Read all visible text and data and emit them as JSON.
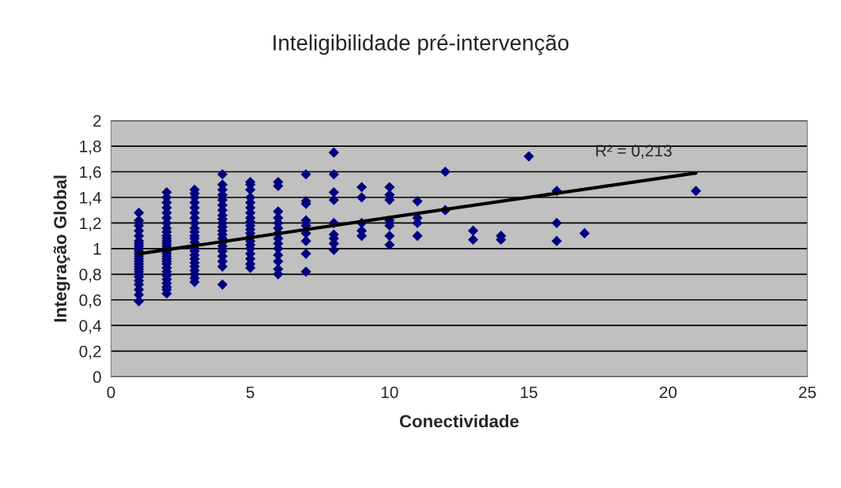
{
  "chart_data": {
    "type": "scatter",
    "title": "Inteligibilidade pré-intervenção",
    "xlabel": "Conectividade",
    "ylabel": "Integração Global",
    "xlim": [
      0,
      25
    ],
    "xticks": [
      0,
      5,
      10,
      15,
      20,
      25
    ],
    "ylim": [
      0,
      2
    ],
    "yticks": [
      {
        "value": 0,
        "label": "0"
      },
      {
        "value": 0.2,
        "label": "0,2"
      },
      {
        "value": 0.4,
        "label": "0,4"
      },
      {
        "value": 0.6,
        "label": "0,6"
      },
      {
        "value": 0.8,
        "label": "0,8"
      },
      {
        "value": 1,
        "label": "1"
      },
      {
        "value": 1.2,
        "label": "1,2"
      },
      {
        "value": 1.4,
        "label": "1,4"
      },
      {
        "value": 1.6,
        "label": "1,6"
      },
      {
        "value": 1.8,
        "label": "1,8"
      },
      {
        "value": 2,
        "label": "2"
      }
    ],
    "grid": "y",
    "legend": false,
    "annotations": [
      "R² = 0,213"
    ],
    "series": [
      {
        "marker": "diamond",
        "color": "#000080",
        "x": [
          1,
          1,
          1,
          1,
          1,
          1,
          1,
          1,
          1,
          1,
          1,
          1,
          1,
          1,
          1,
          1,
          1,
          1,
          1,
          1,
          1,
          1,
          1,
          1,
          1,
          2,
          2,
          2,
          2,
          2,
          2,
          2,
          2,
          2,
          2,
          2,
          2,
          2,
          2,
          2,
          2,
          2,
          2,
          2,
          2,
          2,
          2,
          2,
          2,
          2,
          2,
          2,
          2,
          2,
          3,
          3,
          3,
          3,
          3,
          3,
          3,
          3,
          3,
          3,
          3,
          3,
          3,
          3,
          3,
          3,
          3,
          3,
          3,
          3,
          3,
          3,
          3,
          4,
          4,
          4,
          4,
          4,
          4,
          4,
          4,
          4,
          4,
          4,
          4,
          4,
          4,
          4,
          4,
          4,
          4,
          4,
          4,
          4,
          5,
          5,
          5,
          5,
          5,
          5,
          5,
          5,
          5,
          5,
          5,
          5,
          5,
          5,
          5,
          5,
          5,
          5,
          5,
          5,
          6,
          6,
          6,
          6,
          6,
          6,
          6,
          6,
          6,
          6,
          6,
          6,
          6,
          6,
          7,
          7,
          7,
          7,
          7,
          7,
          7,
          7,
          7,
          8,
          8,
          8,
          8,
          8,
          8,
          8,
          8,
          8,
          9,
          9,
          9,
          9,
          9,
          10,
          10,
          10,
          10,
          10,
          10,
          10,
          11,
          11,
          11,
          11,
          12,
          12,
          13,
          13,
          14,
          14,
          15,
          16,
          16,
          16,
          17,
          21
        ],
        "values": [
          0.59,
          0.64,
          0.68,
          0.72,
          0.75,
          0.78,
          0.8,
          0.82,
          0.84,
          0.86,
          0.88,
          0.9,
          0.92,
          0.94,
          0.96,
          0.98,
          1.0,
          1.02,
          1.04,
          1.06,
          1.1,
          1.14,
          1.18,
          1.22,
          1.28,
          0.65,
          0.68,
          0.7,
          0.73,
          0.76,
          0.79,
          0.82,
          0.85,
          0.88,
          0.9,
          0.92,
          0.94,
          0.96,
          0.98,
          1.0,
          1.02,
          1.04,
          1.06,
          1.08,
          1.1,
          1.13,
          1.16,
          1.2,
          1.24,
          1.28,
          1.32,
          1.36,
          1.4,
          1.44,
          0.74,
          0.77,
          0.8,
          0.83,
          0.86,
          0.89,
          0.92,
          0.95,
          0.98,
          1.0,
          1.05,
          1.08,
          1.1,
          1.13,
          1.16,
          1.2,
          1.24,
          1.28,
          1.32,
          1.36,
          1.4,
          1.43,
          1.46,
          0.72,
          0.86,
          0.9,
          0.94,
          0.98,
          1.02,
          1.05,
          1.08,
          1.11,
          1.14,
          1.17,
          1.2,
          1.23,
          1.26,
          1.3,
          1.34,
          1.38,
          1.42,
          1.46,
          1.5,
          1.58,
          0.85,
          0.88,
          0.92,
          0.96,
          1.0,
          1.03,
          1.06,
          1.09,
          1.12,
          1.15,
          1.18,
          1.21,
          1.24,
          1.28,
          1.32,
          1.36,
          1.4,
          1.46,
          1.5,
          1.52,
          0.8,
          0.84,
          0.9,
          0.95,
          1.0,
          1.04,
          1.08,
          1.12,
          1.16,
          1.2,
          1.24,
          1.29,
          1.49,
          1.52,
          0.82,
          0.96,
          1.06,
          1.12,
          1.18,
          1.22,
          1.35,
          1.37,
          1.58,
          0.99,
          1.04,
          1.08,
          1.11,
          1.2,
          1.38,
          1.44,
          1.58,
          1.75,
          1.1,
          1.14,
          1.2,
          1.4,
          1.48,
          1.03,
          1.1,
          1.18,
          1.22,
          1.38,
          1.42,
          1.48,
          1.1,
          1.2,
          1.24,
          1.37,
          1.3,
          1.6,
          1.07,
          1.14,
          1.07,
          1.1,
          1.72,
          1.06,
          1.2,
          1.45,
          1.12,
          1.45
        ]
      },
      {
        "type": "line",
        "marker": "none",
        "color": "#000000",
        "x": [
          1,
          21
        ],
        "values": [
          0.96,
          1.59
        ]
      }
    ]
  }
}
